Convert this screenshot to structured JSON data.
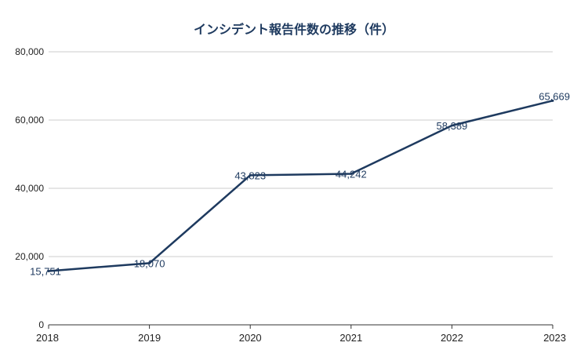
{
  "chart_data": {
    "type": "line",
    "title": "インシデント報告件数の推移（件）",
    "x": [
      "2018",
      "2019",
      "2020",
      "2021",
      "2022",
      "2023"
    ],
    "series": [
      {
        "values": [
          15751,
          18070,
          43823,
          44242,
          58389,
          65669
        ]
      }
    ],
    "data_labels": [
      "15,751",
      "18,070",
      "43,823",
      "44,242",
      "58,389",
      "65,669"
    ],
    "yticks": [
      "0",
      "20,000",
      "40,000",
      "60,000",
      "80,000"
    ],
    "ylim": [
      0,
      80000
    ],
    "xlabel": "",
    "ylabel": "",
    "grid": true,
    "line_color": "#1e3a5f"
  }
}
